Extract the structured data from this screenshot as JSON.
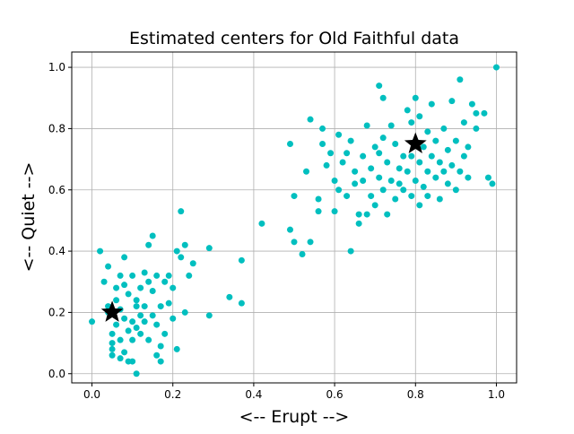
{
  "chart_data": {
    "type": "scatter",
    "title": "Estimated centers for Old Faithful data",
    "xlabel": "<-- Erupt -->",
    "ylabel": "<-- Quiet -->",
    "xlim": [
      -0.05,
      1.05
    ],
    "ylim": [
      -0.03,
      1.05
    ],
    "xticks": [
      "0.0",
      "0.2",
      "0.4",
      "0.6",
      "0.8",
      "1.0"
    ],
    "yticks": [
      "0.0",
      "0.2",
      "0.4",
      "0.6",
      "0.8",
      "1.0"
    ],
    "grid": true,
    "colors": {
      "points": "#00bfbf",
      "centers": "#000000",
      "grid": "#b0b0b0"
    },
    "centers": [
      {
        "x": 0.05,
        "y": 0.2
      },
      {
        "x": 0.8,
        "y": 0.75
      }
    ],
    "series": [
      {
        "points": [
          [
            0.0,
            0.17
          ],
          [
            0.02,
            0.4
          ],
          [
            0.03,
            0.3
          ],
          [
            0.04,
            0.35
          ],
          [
            0.04,
            0.2
          ],
          [
            0.04,
            0.22
          ],
          [
            0.05,
            0.1
          ],
          [
            0.05,
            0.08
          ],
          [
            0.05,
            0.06
          ],
          [
            0.05,
            0.13
          ],
          [
            0.06,
            0.28
          ],
          [
            0.06,
            0.16
          ],
          [
            0.06,
            0.24
          ],
          [
            0.07,
            0.32
          ],
          [
            0.07,
            0.21
          ],
          [
            0.07,
            0.05
          ],
          [
            0.07,
            0.11
          ],
          [
            0.08,
            0.38
          ],
          [
            0.08,
            0.29
          ],
          [
            0.08,
            0.18
          ],
          [
            0.08,
            0.07
          ],
          [
            0.09,
            0.04
          ],
          [
            0.09,
            0.26
          ],
          [
            0.09,
            0.14
          ],
          [
            0.1,
            0.32
          ],
          [
            0.1,
            0.17
          ],
          [
            0.1,
            0.04
          ],
          [
            0.1,
            0.11
          ],
          [
            0.11,
            0.24
          ],
          [
            0.11,
            0.22
          ],
          [
            0.11,
            0.15
          ],
          [
            0.11,
            0.0
          ],
          [
            0.12,
            0.19
          ],
          [
            0.12,
            0.13
          ],
          [
            0.12,
            0.28
          ],
          [
            0.13,
            0.33
          ],
          [
            0.13,
            0.22
          ],
          [
            0.13,
            0.17
          ],
          [
            0.14,
            0.11
          ],
          [
            0.14,
            0.42
          ],
          [
            0.14,
            0.3
          ],
          [
            0.15,
            0.45
          ],
          [
            0.15,
            0.19
          ],
          [
            0.15,
            0.27
          ],
          [
            0.16,
            0.32
          ],
          [
            0.16,
            0.06
          ],
          [
            0.16,
            0.16
          ],
          [
            0.17,
            0.22
          ],
          [
            0.17,
            0.09
          ],
          [
            0.17,
            0.04
          ],
          [
            0.18,
            0.3
          ],
          [
            0.18,
            0.13
          ],
          [
            0.19,
            0.32
          ],
          [
            0.19,
            0.23
          ],
          [
            0.2,
            0.28
          ],
          [
            0.2,
            0.18
          ],
          [
            0.21,
            0.4
          ],
          [
            0.21,
            0.08
          ],
          [
            0.22,
            0.53
          ],
          [
            0.22,
            0.38
          ],
          [
            0.23,
            0.42
          ],
          [
            0.23,
            0.2
          ],
          [
            0.24,
            0.32
          ],
          [
            0.25,
            0.36
          ],
          [
            0.29,
            0.41
          ],
          [
            0.29,
            0.19
          ],
          [
            0.34,
            0.25
          ],
          [
            0.37,
            0.37
          ],
          [
            0.37,
            0.23
          ],
          [
            0.42,
            0.49
          ],
          [
            0.49,
            0.75
          ],
          [
            0.49,
            0.47
          ],
          [
            0.5,
            0.58
          ],
          [
            0.5,
            0.43
          ],
          [
            0.52,
            0.39
          ],
          [
            0.53,
            0.66
          ],
          [
            0.54,
            0.83
          ],
          [
            0.54,
            0.43
          ],
          [
            0.56,
            0.57
          ],
          [
            0.56,
            0.53
          ],
          [
            0.57,
            0.8
          ],
          [
            0.57,
            0.75
          ],
          [
            0.58,
            0.68
          ],
          [
            0.59,
            0.72
          ],
          [
            0.6,
            0.63
          ],
          [
            0.6,
            0.53
          ],
          [
            0.61,
            0.78
          ],
          [
            0.61,
            0.6
          ],
          [
            0.62,
            0.69
          ],
          [
            0.63,
            0.72
          ],
          [
            0.63,
            0.58
          ],
          [
            0.64,
            0.4
          ],
          [
            0.64,
            0.76
          ],
          [
            0.65,
            0.62
          ],
          [
            0.65,
            0.66
          ],
          [
            0.66,
            0.52
          ],
          [
            0.66,
            0.49
          ],
          [
            0.67,
            0.71
          ],
          [
            0.67,
            0.63
          ],
          [
            0.68,
            0.81
          ],
          [
            0.68,
            0.52
          ],
          [
            0.69,
            0.67
          ],
          [
            0.69,
            0.58
          ],
          [
            0.7,
            0.74
          ],
          [
            0.7,
            0.55
          ],
          [
            0.71,
            0.94
          ],
          [
            0.71,
            0.72
          ],
          [
            0.71,
            0.64
          ],
          [
            0.72,
            0.77
          ],
          [
            0.72,
            0.6
          ],
          [
            0.72,
            0.9
          ],
          [
            0.73,
            0.69
          ],
          [
            0.73,
            0.52
          ],
          [
            0.74,
            0.81
          ],
          [
            0.74,
            0.63
          ],
          [
            0.75,
            0.57
          ],
          [
            0.75,
            0.75
          ],
          [
            0.76,
            0.67
          ],
          [
            0.76,
            0.62
          ],
          [
            0.77,
            0.71
          ],
          [
            0.77,
            0.6
          ],
          [
            0.78,
            0.86
          ],
          [
            0.78,
            0.66
          ],
          [
            0.79,
            0.82
          ],
          [
            0.79,
            0.71
          ],
          [
            0.79,
            0.58
          ],
          [
            0.8,
            0.9
          ],
          [
            0.8,
            0.76
          ],
          [
            0.8,
            0.63
          ],
          [
            0.81,
            0.84
          ],
          [
            0.81,
            0.69
          ],
          [
            0.81,
            0.55
          ],
          [
            0.82,
            0.74
          ],
          [
            0.82,
            0.61
          ],
          [
            0.83,
            0.79
          ],
          [
            0.83,
            0.66
          ],
          [
            0.83,
            0.58
          ],
          [
            0.84,
            0.71
          ],
          [
            0.84,
            0.88
          ],
          [
            0.85,
            0.76
          ],
          [
            0.85,
            0.64
          ],
          [
            0.86,
            0.69
          ],
          [
            0.86,
            0.57
          ],
          [
            0.87,
            0.8
          ],
          [
            0.87,
            0.66
          ],
          [
            0.88,
            0.73
          ],
          [
            0.88,
            0.62
          ],
          [
            0.89,
            0.89
          ],
          [
            0.89,
            0.68
          ],
          [
            0.9,
            0.76
          ],
          [
            0.9,
            0.6
          ],
          [
            0.91,
            0.96
          ],
          [
            0.91,
            0.66
          ],
          [
            0.92,
            0.82
          ],
          [
            0.92,
            0.71
          ],
          [
            0.93,
            0.74
          ],
          [
            0.93,
            0.64
          ],
          [
            0.94,
            0.88
          ],
          [
            0.95,
            0.8
          ],
          [
            0.95,
            0.85
          ],
          [
            0.97,
            0.85
          ],
          [
            0.98,
            0.64
          ],
          [
            0.99,
            0.62
          ],
          [
            1.0,
            1.0
          ]
        ]
      }
    ]
  }
}
